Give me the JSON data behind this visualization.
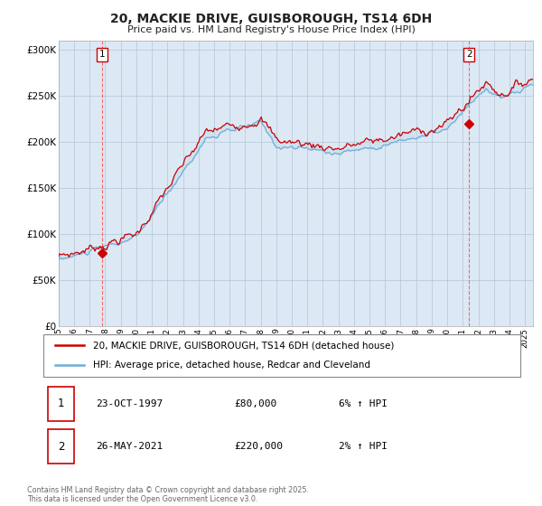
{
  "title_line1": "20, MACKIE DRIVE, GUISBOROUGH, TS14 6DH",
  "title_line2": "Price paid vs. HM Land Registry's House Price Index (HPI)",
  "legend_line1": "20, MACKIE DRIVE, GUISBOROUGH, TS14 6DH (detached house)",
  "legend_line2": "HPI: Average price, detached house, Redcar and Cleveland",
  "sale1_label": "1",
  "sale1_date": "23-OCT-1997",
  "sale1_price": "£80,000",
  "sale1_hpi": "6% ↑ HPI",
  "sale2_label": "2",
  "sale2_date": "26-MAY-2021",
  "sale2_price": "£220,000",
  "sale2_hpi": "2% ↑ HPI",
  "footnote": "Contains HM Land Registry data © Crown copyright and database right 2025.\nThis data is licensed under the Open Government Licence v3.0.",
  "hpi_color": "#6baed6",
  "price_color": "#cc0000",
  "marker_color": "#cc0000",
  "fill_color": "#c6dbef",
  "chart_bg": "#dce9f5",
  "sale1_year": 1997.8,
  "sale1_value": 80000,
  "sale2_year": 2021.4,
  "sale2_value": 220000,
  "ylim_max": 310000,
  "ylim_min": 0,
  "background_color": "#ffffff",
  "grid_color": "#b0c4d8",
  "vline_color": "#ff6666"
}
